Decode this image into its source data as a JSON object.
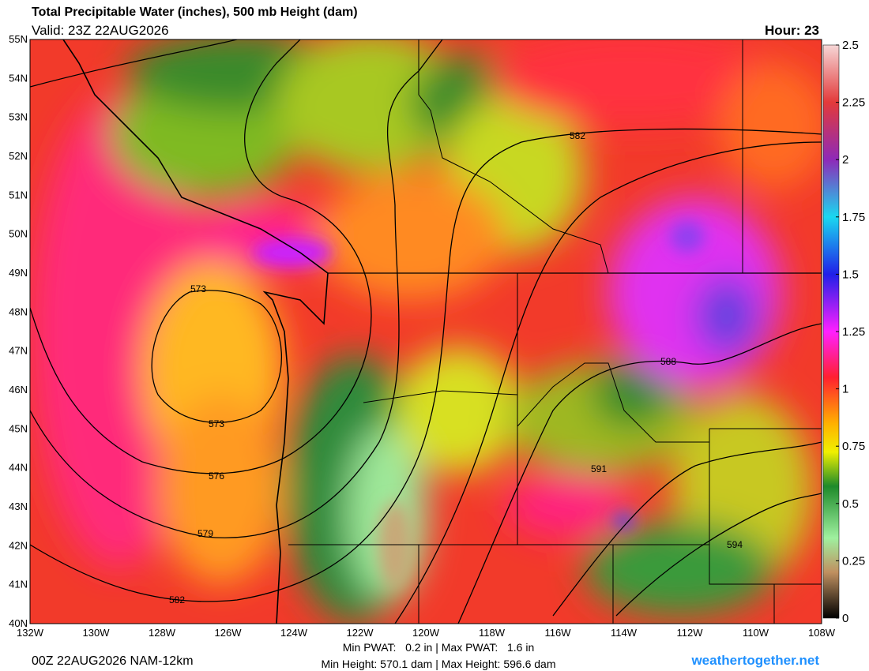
{
  "header": {
    "title": "Total Precipitable Water (inches), 500 mb Height (dam)",
    "valid": "Valid: 23Z 22AUG2026",
    "hour": "Hour: 23"
  },
  "lat_labels": [
    "55N",
    "54N",
    "53N",
    "52N",
    "51N",
    "50N",
    "49N",
    "48N",
    "47N",
    "46N",
    "45N",
    "44N",
    "43N",
    "42N",
    "41N",
    "40N"
  ],
  "lon_labels": [
    "132W",
    "130W",
    "128W",
    "126W",
    "124W",
    "122W",
    "120W",
    "118W",
    "116W",
    "114W",
    "112W",
    "110W",
    "108W"
  ],
  "colorbar": {
    "range": [
      0,
      2.5
    ],
    "ticks": [
      2.5,
      2.25,
      2,
      1.75,
      1.5,
      1.25,
      1,
      0.75,
      0.5,
      0.25,
      0
    ]
  },
  "contour_labels": [
    573,
    573,
    576,
    579,
    582,
    582,
    588,
    591,
    594
  ],
  "footer": {
    "run": "00Z 22AUG2026 NAM-12km",
    "pwat": "Min PWAT:   0.2 in | Max PWAT:   1.6 in",
    "height": "Min Height: 570.1 dam | Max Height: 596.6 dam",
    "site": "weathertogether.net"
  }
}
